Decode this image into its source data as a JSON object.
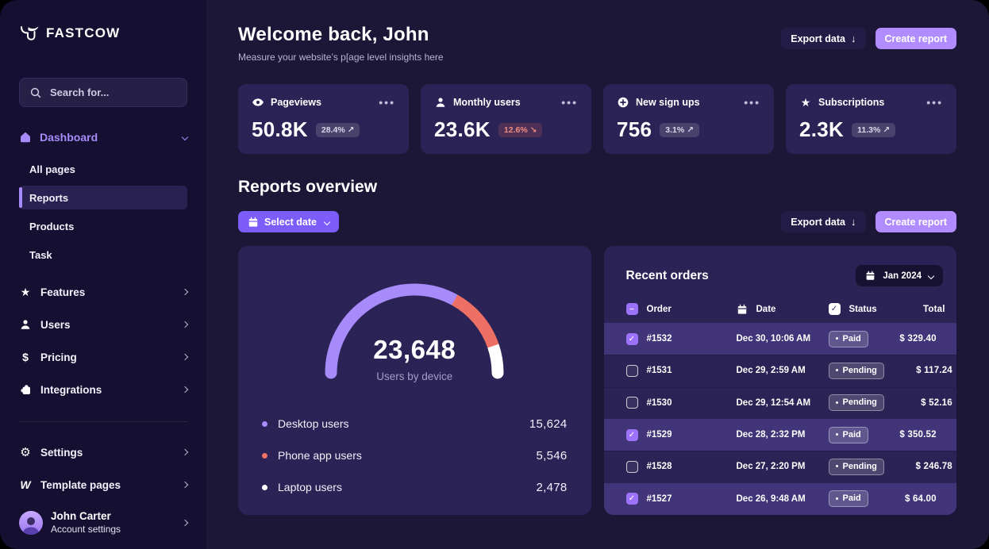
{
  "sidebar": {
    "logo_text": "FASTCOW",
    "search_placeholder": "Search for...",
    "dashboard": {
      "label": "Dashboard",
      "children": [
        "All pages",
        "Reports",
        "Products",
        "Task"
      ],
      "active_child": "Reports"
    },
    "nav": [
      {
        "label": "Features",
        "icon": "star-icon"
      },
      {
        "label": "Users",
        "icon": "user-icon"
      },
      {
        "label": "Pricing",
        "icon": "dollar-icon"
      },
      {
        "label": "Integrations",
        "icon": "puzzle-icon"
      }
    ],
    "footer_nav": [
      {
        "label": "Settings",
        "icon": "gear-icon"
      },
      {
        "label": "Template pages",
        "icon": "webflow-icon"
      }
    ],
    "account": {
      "name": "John Carter",
      "subtitle": "Account settings"
    }
  },
  "header": {
    "title": "Welcome back, John",
    "subtitle": "Measure your website’s p[age level insights here",
    "export_label": "Export data",
    "export_arrow": "↓",
    "create_label": "Create report"
  },
  "stats": [
    {
      "label": "Pageviews",
      "icon": "eye-icon",
      "value": "50.8K",
      "delta": "28.4%",
      "arrow": "↗",
      "direction": "up"
    },
    {
      "label": "Monthly users",
      "icon": "user-icon",
      "value": "23.6K",
      "delta": "12.6%",
      "arrow": "↘",
      "direction": "down"
    },
    {
      "label": "New sign ups",
      "icon": "plus-circle-icon",
      "value": "756",
      "delta": "3.1%",
      "arrow": "↗",
      "direction": "up"
    },
    {
      "label": "Subscriptions",
      "icon": "star-icon",
      "value": "2.3K",
      "delta": "11.3%",
      "arrow": "↗",
      "direction": "up"
    }
  ],
  "reports": {
    "heading": "Reports overview",
    "select_date_label": "Select date",
    "export_label": "Export data",
    "export_arrow": "↓",
    "create_label": "Create report"
  },
  "chart_data": {
    "type": "pie",
    "variant": "half-donut-gauge",
    "title": "Users by device",
    "center_value": "23,648",
    "center_label": "Users by device",
    "total": 23648,
    "series": [
      {
        "name": "Desktop users",
        "value": 15624,
        "display": "15,624",
        "color": "#a78bfa"
      },
      {
        "name": "Phone app users",
        "value": 5546,
        "display": "5,546",
        "color": "#ee6f63"
      },
      {
        "name": "Laptop users",
        "value": 2478,
        "display": "2,478",
        "color": "#ffffff"
      }
    ],
    "legend_position": "bottom"
  },
  "orders": {
    "title": "Recent orders",
    "month_filter": "Jan 2024",
    "columns": [
      "Order",
      "Date",
      "Status",
      "Total"
    ],
    "rows": [
      {
        "order": "#1532",
        "date": "Dec 30, 10:06 AM",
        "status": "Paid",
        "total": "$ 329.40",
        "selected": true
      },
      {
        "order": "#1531",
        "date": "Dec 29, 2:59 AM",
        "status": "Pending",
        "total": "$ 117.24",
        "selected": false
      },
      {
        "order": "#1530",
        "date": "Dec 29, 12:54 AM",
        "status": "Pending",
        "total": "$ 52.16",
        "selected": false
      },
      {
        "order": "#1529",
        "date": "Dec 28, 2:32 PM",
        "status": "Paid",
        "total": "$ 350.52",
        "selected": true
      },
      {
        "order": "#1528",
        "date": "Dec 27, 2:20 PM",
        "status": "Pending",
        "total": "$ 246.78",
        "selected": false
      },
      {
        "order": "#1527",
        "date": "Dec 26, 9:48 AM",
        "status": "Paid",
        "total": "$ 64.00",
        "selected": true
      }
    ]
  },
  "colors": {
    "sidebar_bg": "#151031",
    "main_bg": "#1c1737",
    "card_bg": "#2b2355",
    "accent_purple": "#7c5dfa",
    "light_purple": "#b18cfe",
    "gauge_purple": "#a78bfa",
    "salmon": "#ee6f63",
    "row_selected_bg": "#413478",
    "danger_text": "#ef8a7d"
  }
}
